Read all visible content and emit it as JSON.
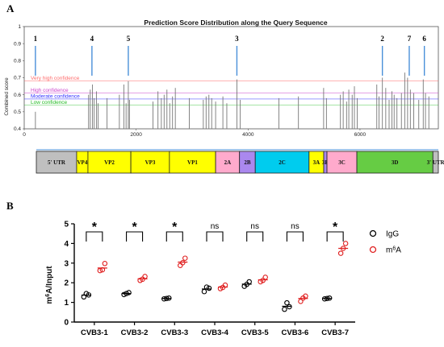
{
  "panel_a": {
    "letter": "A",
    "chart_data": {
      "type": "bar",
      "title": "Prediction Score Distribution along the Query Sequence",
      "ylabel": "Combined score",
      "xlabel": "",
      "ylim": [
        0.4,
        1.0
      ],
      "xlim": [
        0,
        7400
      ],
      "y_ticks": [
        "0.4",
        "0.5",
        "0.6",
        "0.7",
        "0.8",
        "0.9",
        "1"
      ],
      "x_ticks": [
        "0",
        "2000",
        "4000",
        "6000"
      ],
      "grid": false,
      "thresholds": [
        {
          "name": "Very high confidence",
          "value": 0.68,
          "color": "#ff6b6b"
        },
        {
          "name": "High confidence",
          "value": 0.61,
          "color": "#cc44cc"
        },
        {
          "name": "Moderate confidence",
          "value": 0.575,
          "color": "#3333ff"
        },
        {
          "name": "Low confidence",
          "value": 0.54,
          "color": "#22bb22"
        }
      ],
      "bars": [
        {
          "x": 200,
          "y": 0.5
        },
        {
          "x": 1150,
          "y": 0.6
        },
        {
          "x": 1180,
          "y": 0.63
        },
        {
          "x": 1220,
          "y": 0.66
        },
        {
          "x": 1250,
          "y": 0.58
        },
        {
          "x": 1290,
          "y": 0.62
        },
        {
          "x": 1320,
          "y": 0.55
        },
        {
          "x": 1480,
          "y": 0.58
        },
        {
          "x": 1700,
          "y": 0.6
        },
        {
          "x": 1780,
          "y": 0.66
        },
        {
          "x": 1820,
          "y": 0.55
        },
        {
          "x": 1860,
          "y": 0.68
        },
        {
          "x": 1880,
          "y": 0.57
        },
        {
          "x": 2300,
          "y": 0.56
        },
        {
          "x": 2390,
          "y": 0.62
        },
        {
          "x": 2450,
          "y": 0.58
        },
        {
          "x": 2500,
          "y": 0.6
        },
        {
          "x": 2550,
          "y": 0.63
        },
        {
          "x": 2600,
          "y": 0.55
        },
        {
          "x": 2650,
          "y": 0.59
        },
        {
          "x": 2700,
          "y": 0.64
        },
        {
          "x": 2950,
          "y": 0.58
        },
        {
          "x": 3200,
          "y": 0.57
        },
        {
          "x": 3250,
          "y": 0.59
        },
        {
          "x": 3300,
          "y": 0.6
        },
        {
          "x": 3350,
          "y": 0.58
        },
        {
          "x": 3420,
          "y": 0.56
        },
        {
          "x": 3550,
          "y": 0.59
        },
        {
          "x": 3620,
          "y": 0.55
        },
        {
          "x": 3800,
          "y": 0.69
        },
        {
          "x": 3860,
          "y": 0.57
        },
        {
          "x": 4550,
          "y": 0.58
        },
        {
          "x": 4900,
          "y": 0.59
        },
        {
          "x": 5350,
          "y": 0.64
        },
        {
          "x": 5400,
          "y": 0.58
        },
        {
          "x": 5650,
          "y": 0.6
        },
        {
          "x": 5700,
          "y": 0.62
        },
        {
          "x": 5760,
          "y": 0.56
        },
        {
          "x": 5800,
          "y": 0.63
        },
        {
          "x": 5860,
          "y": 0.6
        },
        {
          "x": 5900,
          "y": 0.65
        },
        {
          "x": 5950,
          "y": 0.58
        },
        {
          "x": 6300,
          "y": 0.66
        },
        {
          "x": 6340,
          "y": 0.59
        },
        {
          "x": 6400,
          "y": 0.7
        },
        {
          "x": 6460,
          "y": 0.64
        },
        {
          "x": 6520,
          "y": 0.57
        },
        {
          "x": 6570,
          "y": 0.62
        },
        {
          "x": 6610,
          "y": 0.6
        },
        {
          "x": 6660,
          "y": 0.58
        },
        {
          "x": 6740,
          "y": 0.61
        },
        {
          "x": 6800,
          "y": 0.73
        },
        {
          "x": 6850,
          "y": 0.7
        },
        {
          "x": 6900,
          "y": 0.63
        },
        {
          "x": 6960,
          "y": 0.61
        },
        {
          "x": 7050,
          "y": 0.57
        },
        {
          "x": 7130,
          "y": 0.69
        },
        {
          "x": 7170,
          "y": 0.61
        },
        {
          "x": 7230,
          "y": 0.59
        }
      ],
      "peaks": [
        {
          "label": "1",
          "x": 200
        },
        {
          "label": "4",
          "x": 1210
        },
        {
          "label": "5",
          "x": 1860
        },
        {
          "label": "3",
          "x": 3800
        },
        {
          "label": "2",
          "x": 6400
        },
        {
          "label": "7",
          "x": 6880
        },
        {
          "label": "6",
          "x": 7150
        }
      ],
      "peak_marker_color": "#4a90d9"
    },
    "genome_map": {
      "track_color": "#4a90d9",
      "segments": [
        {
          "label": "5' UTR",
          "color": "#bfbfbf",
          "start": 0,
          "end": 742
        },
        {
          "label": "VP4",
          "color": "#ffff00",
          "start": 742,
          "end": 950
        },
        {
          "label": "VP2",
          "color": "#ffff00",
          "start": 950,
          "end": 1740
        },
        {
          "label": "VP3",
          "color": "#ffff00",
          "start": 1740,
          "end": 2450
        },
        {
          "label": "VP1",
          "color": "#ffff00",
          "start": 2450,
          "end": 3300
        },
        {
          "label": "2A",
          "color": "#ffaacc",
          "start": 3300,
          "end": 3740
        },
        {
          "label": "2B",
          "color": "#aa88ee",
          "start": 3740,
          "end": 4030
        },
        {
          "label": "2C",
          "color": "#00ccee",
          "start": 4030,
          "end": 5020
        },
        {
          "label": "3A",
          "color": "#ffff00",
          "start": 5020,
          "end": 5290
        },
        {
          "label": "3B",
          "color": "#aa88ee",
          "start": 5290,
          "end": 5350
        },
        {
          "label": "3C",
          "color": "#ffaacc",
          "start": 5350,
          "end": 5900
        },
        {
          "label": "3D",
          "color": "#66cc44",
          "start": 5900,
          "end": 7300
        },
        {
          "label": "3' UTR",
          "color": "#bfbfbf",
          "start": 7300,
          "end": 7400
        }
      ]
    }
  },
  "panel_b": {
    "letter": "B",
    "chart_data": {
      "type": "scatter",
      "ylabel": "m6A/Input",
      "ylim": [
        0,
        5
      ],
      "y_ticks": [
        "0",
        "1",
        "2",
        "3",
        "4",
        "5"
      ],
      "categories": [
        "CVB3-1",
        "CVB3-2",
        "CVB3-3",
        "CVB3-4",
        "CVB3-5",
        "CVB3-6",
        "CVB3-7"
      ],
      "significance": [
        "*",
        "*",
        "*",
        "ns",
        "ns",
        "ns",
        "*"
      ],
      "series": [
        {
          "name": "IgG",
          "color": "#000000",
          "means": [
            1.37,
            1.45,
            1.2,
            1.68,
            1.93,
            0.8,
            1.2
          ],
          "points": [
            [
              1.28,
              1.38,
              1.45
            ],
            [
              1.4,
              1.5,
              1.45
            ],
            [
              1.18,
              1.22,
              1.2
            ],
            [
              1.55,
              1.72,
              1.78
            ],
            [
              1.82,
              2.05,
              1.92
            ],
            [
              0.65,
              0.78,
              0.98
            ],
            [
              1.18,
              1.22,
              1.2
            ]
          ]
        },
        {
          "name": "m6A",
          "color": "#e02020",
          "means": [
            2.75,
            2.2,
            3.05,
            1.78,
            2.15,
            1.2,
            3.75
          ],
          "points": [
            [
              2.62,
              2.98,
              2.66
            ],
            [
              2.12,
              2.32,
              2.18
            ],
            [
              2.88,
              3.25,
              3.02
            ],
            [
              1.7,
              1.88,
              1.76
            ],
            [
              2.05,
              2.28,
              2.12
            ],
            [
              1.05,
              1.32,
              1.22
            ],
            [
              3.5,
              4.0,
              3.75
            ]
          ]
        }
      ],
      "legend_placement": "top-right"
    }
  }
}
